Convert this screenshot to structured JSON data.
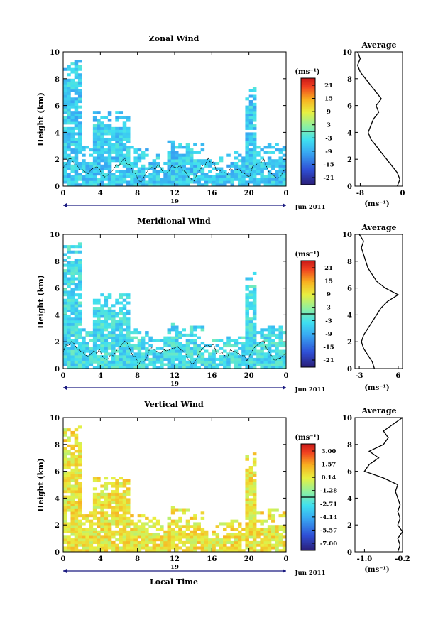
{
  "figure": {
    "xlabel": "Local Time",
    "date_label": "Jun 2011",
    "day_label": "19",
    "unit_label": "(ms⁻¹)",
    "avg_title": "Average",
    "avg_xlabel": "(ms⁻¹)"
  },
  "chart_data": [
    {
      "type": "heatmap",
      "title": "Zonal Wind",
      "ylabel": "Height (km)",
      "x_range": [
        0,
        24
      ],
      "y_range": [
        0,
        10
      ],
      "xticks": [
        "0",
        "4",
        "8",
        "12",
        "16",
        "20",
        "0"
      ],
      "yticks": [
        "0",
        "2",
        "4",
        "6",
        "8",
        "10"
      ],
      "colorbar": {
        "ticks": [
          "21",
          "15",
          "9",
          "3",
          "-3",
          "-9",
          "-15",
          "-21"
        ],
        "range": [
          -24,
          24
        ]
      },
      "dominant_value": -6,
      "average_profile": {
        "title": "Average",
        "xticks": [
          "-8",
          "0"
        ],
        "x_range": [
          -9,
          0
        ],
        "points": [
          [
            -1.0,
            0.0
          ],
          [
            -0.5,
            0.5
          ],
          [
            -1.0,
            1.0
          ],
          [
            -2.0,
            1.5
          ],
          [
            -3.0,
            2.0
          ],
          [
            -4.0,
            2.5
          ],
          [
            -5.0,
            3.0
          ],
          [
            -6.0,
            3.5
          ],
          [
            -6.5,
            4.0
          ],
          [
            -6.0,
            4.5
          ],
          [
            -5.5,
            5.0
          ],
          [
            -4.5,
            5.5
          ],
          [
            -5.0,
            6.0
          ],
          [
            -4.0,
            6.5
          ],
          [
            -5.0,
            7.0
          ],
          [
            -6.0,
            7.5
          ],
          [
            -7.0,
            8.0
          ],
          [
            -8.0,
            8.5
          ],
          [
            -8.5,
            9.0
          ],
          [
            -8.0,
            9.5
          ],
          [
            -8.5,
            10.0
          ]
        ]
      }
    },
    {
      "type": "heatmap",
      "title": "Meridional Wind",
      "ylabel": "Height (km)",
      "x_range": [
        0,
        24
      ],
      "y_range": [
        0,
        10
      ],
      "xticks": [
        "0",
        "4",
        "8",
        "12",
        "16",
        "20",
        "0"
      ],
      "yticks": [
        "0",
        "2",
        "4",
        "6",
        "8",
        "10"
      ],
      "colorbar": {
        "ticks": [
          "21",
          "15",
          "9",
          "3",
          "-3",
          "-9",
          "-15",
          "-21"
        ],
        "range": [
          -24,
          24
        ]
      },
      "dominant_value": -4,
      "average_profile": {
        "title": "Average",
        "xticks": [
          "-3",
          "6"
        ],
        "x_range": [
          -4,
          7
        ],
        "points": [
          [
            0.5,
            0.0
          ],
          [
            0.0,
            0.5
          ],
          [
            -1.0,
            1.0
          ],
          [
            -2.0,
            1.5
          ],
          [
            -2.5,
            2.0
          ],
          [
            -2.0,
            2.5
          ],
          [
            -1.0,
            3.0
          ],
          [
            0.0,
            3.5
          ],
          [
            1.0,
            4.0
          ],
          [
            2.0,
            4.5
          ],
          [
            3.5,
            5.0
          ],
          [
            6.0,
            5.5
          ],
          [
            3.0,
            6.0
          ],
          [
            1.0,
            6.5
          ],
          [
            0.0,
            7.0
          ],
          [
            -1.0,
            7.5
          ],
          [
            -1.5,
            8.0
          ],
          [
            -2.0,
            8.5
          ],
          [
            -2.5,
            9.0
          ],
          [
            -2.0,
            9.5
          ],
          [
            -3.0,
            10.0
          ]
        ]
      }
    },
    {
      "type": "heatmap",
      "title": "Vertical Wind",
      "ylabel": "Height (km)",
      "xlabel": "Local Time",
      "x_range": [
        0,
        24
      ],
      "y_range": [
        0,
        10
      ],
      "xticks": [
        "0",
        "4",
        "8",
        "12",
        "16",
        "20",
        "0"
      ],
      "yticks": [
        "0",
        "2",
        "4",
        "6",
        "8",
        "10"
      ],
      "colorbar": {
        "ticks": [
          "3.00",
          "1.57",
          "0.14",
          "-1.28",
          "-2.71",
          "-4.14",
          "-5.57",
          "-7.00"
        ],
        "range": [
          -7.7,
          3.7
        ]
      },
      "dominant_value": 0.3,
      "average_profile": {
        "title": "Average",
        "xticks": [
          "-1.0",
          "-0.2"
        ],
        "x_range": [
          -1.2,
          -0.2
        ],
        "points": [
          [
            -0.3,
            0.0
          ],
          [
            -0.25,
            0.5
          ],
          [
            -0.3,
            1.0
          ],
          [
            -0.2,
            1.5
          ],
          [
            -0.3,
            2.0
          ],
          [
            -0.25,
            2.5
          ],
          [
            -0.3,
            3.0
          ],
          [
            -0.25,
            3.5
          ],
          [
            -0.3,
            4.0
          ],
          [
            -0.35,
            4.5
          ],
          [
            -0.3,
            5.0
          ],
          [
            -0.6,
            5.5
          ],
          [
            -1.0,
            6.0
          ],
          [
            -0.9,
            6.5
          ],
          [
            -0.7,
            7.0
          ],
          [
            -0.9,
            7.5
          ],
          [
            -0.6,
            8.0
          ],
          [
            -0.5,
            8.5
          ],
          [
            -0.6,
            9.0
          ],
          [
            -0.4,
            9.5
          ],
          [
            -0.2,
            10.0
          ]
        ]
      }
    }
  ]
}
